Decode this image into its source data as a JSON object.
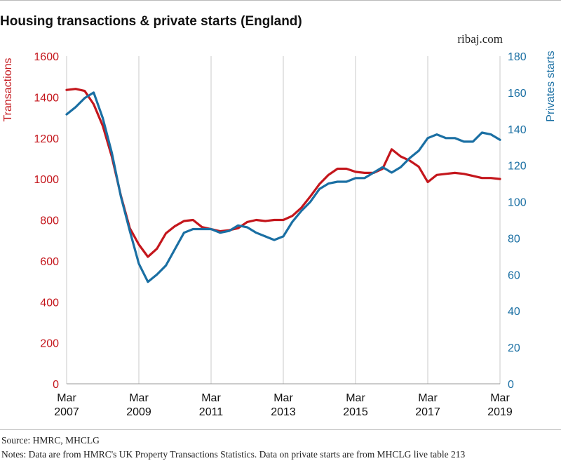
{
  "header": {
    "title": "Housing transactions & private starts (England)",
    "brand": "ribaj.com"
  },
  "footer": {
    "source": "Source: HMRC, MHCLG",
    "notes": "Notes: Data are from HMRC's UK Property Transactions Statistics. Data on private starts are from MHCLG live table 213"
  },
  "chart_data": {
    "type": "line",
    "x_labels": [
      {
        "month": "Mar",
        "year": "2007"
      },
      {
        "month": "Mar",
        "year": "2009"
      },
      {
        "month": "Mar",
        "year": "2011"
      },
      {
        "month": "Mar",
        "year": "2013"
      },
      {
        "month": "Mar",
        "year": "2015"
      },
      {
        "month": "Mar",
        "year": "2017"
      },
      {
        "month": "Mar",
        "year": "2019"
      }
    ],
    "y_left": {
      "label": "Transactions",
      "ticks": [
        0,
        200,
        400,
        600,
        800,
        1000,
        1200,
        1400,
        1600
      ],
      "range": [
        0,
        1600
      ],
      "color": "#c4161c"
    },
    "y_right": {
      "label": "Privates starts",
      "ticks": [
        0,
        20,
        40,
        60,
        80,
        100,
        120,
        140,
        160,
        180
      ],
      "range": [
        0,
        180
      ],
      "color": "#1a6fa3"
    },
    "grid": "vertical",
    "series": [
      {
        "name": "Transactions",
        "axis": "left",
        "color": "#c4161c",
        "x": [
          2007.17,
          2007.42,
          2007.67,
          2007.92,
          2008.17,
          2008.42,
          2008.67,
          2008.92,
          2009.17,
          2009.42,
          2009.67,
          2009.92,
          2010.17,
          2010.42,
          2010.67,
          2010.92,
          2011.17,
          2011.42,
          2011.67,
          2011.92,
          2012.17,
          2012.42,
          2012.67,
          2012.92,
          2013.17,
          2013.42,
          2013.67,
          2013.92,
          2014.17,
          2014.42,
          2014.67,
          2014.92,
          2015.17,
          2015.42,
          2015.67,
          2015.92,
          2016.17,
          2016.42,
          2016.67,
          2016.92,
          2017.17,
          2017.42,
          2017.67,
          2017.92,
          2018.17,
          2018.42,
          2018.67,
          2018.92,
          2019.17
        ],
        "y": [
          1435,
          1440,
          1430,
          1365,
          1260,
          1110,
          920,
          760,
          680,
          620,
          660,
          735,
          770,
          795,
          800,
          765,
          755,
          745,
          750,
          760,
          790,
          800,
          795,
          800,
          800,
          820,
          860,
          915,
          975,
          1020,
          1050,
          1050,
          1035,
          1030,
          1030,
          1050,
          1145,
          1110,
          1090,
          1060,
          985,
          1020,
          1025,
          1030,
          1025,
          1015,
          1005,
          1005,
          1000
        ]
      },
      {
        "name": "Privates starts",
        "axis": "right",
        "color": "#1a6fa3",
        "x": [
          2007.17,
          2007.42,
          2007.67,
          2007.92,
          2008.17,
          2008.42,
          2008.67,
          2008.92,
          2009.17,
          2009.42,
          2009.67,
          2009.92,
          2010.17,
          2010.42,
          2010.67,
          2010.92,
          2011.17,
          2011.42,
          2011.67,
          2011.92,
          2012.17,
          2012.42,
          2012.67,
          2012.92,
          2013.17,
          2013.42,
          2013.67,
          2013.92,
          2014.17,
          2014.42,
          2014.67,
          2014.92,
          2015.17,
          2015.42,
          2015.67,
          2015.92,
          2016.17,
          2016.42,
          2016.67,
          2016.92,
          2017.17,
          2017.42,
          2017.67,
          2017.92,
          2018.17,
          2018.42,
          2018.67,
          2018.92,
          2019.17
        ],
        "y": [
          148,
          152,
          157,
          160,
          146,
          127,
          103,
          84,
          66,
          56,
          60,
          65,
          74,
          83,
          85,
          85,
          85,
          83,
          84,
          87,
          86,
          83,
          81,
          79,
          81,
          89,
          95,
          100,
          107,
          110,
          111,
          111,
          113,
          113,
          116,
          119,
          116,
          119,
          124,
          128,
          135,
          137,
          135,
          135,
          133,
          133,
          138,
          137,
          134
        ]
      }
    ]
  }
}
